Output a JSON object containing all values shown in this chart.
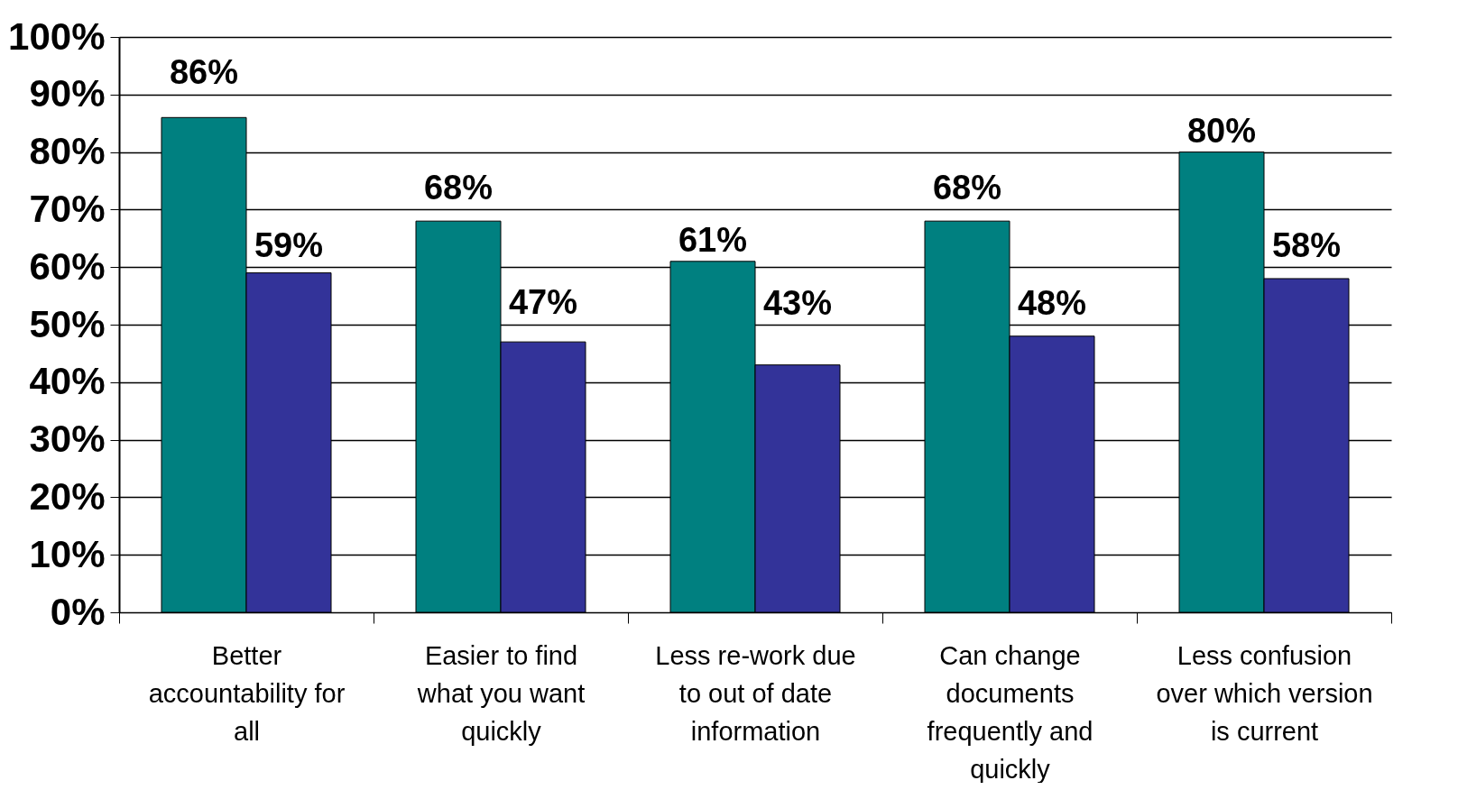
{
  "chart_data": {
    "type": "bar",
    "categories": [
      "Better accountability for all",
      "Easier to find what you want quickly",
      "Less re-work due to out of date information",
      "Can change documents frequently and quickly",
      "Less confusion over which version is current"
    ],
    "series": [
      {
        "color": "#008080",
        "values": [
          86,
          68,
          61,
          68,
          80
        ]
      },
      {
        "color": "#333399",
        "values": [
          59,
          47,
          43,
          48,
          58
        ]
      }
    ],
    "ylim": [
      0,
      100
    ],
    "yticks": [
      {
        "value": 0,
        "label": "0%"
      },
      {
        "value": 10,
        "label": "10%"
      },
      {
        "value": 20,
        "label": "20%"
      },
      {
        "value": 30,
        "label": "30%"
      },
      {
        "value": 40,
        "label": "40%"
      },
      {
        "value": 50,
        "label": "50%"
      },
      {
        "value": 60,
        "label": "60%"
      },
      {
        "value": 70,
        "label": "70%"
      },
      {
        "value": 80,
        "label": "80%"
      },
      {
        "value": 90,
        "label": "90%"
      },
      {
        "value": 100,
        "label": "100%"
      }
    ],
    "grid": "y",
    "legend": false,
    "value_labels": [
      [
        "86%",
        "68%",
        "61%",
        "68%",
        "80%"
      ],
      [
        "59%",
        "47%",
        "43%",
        "48%",
        "58%"
      ]
    ]
  }
}
